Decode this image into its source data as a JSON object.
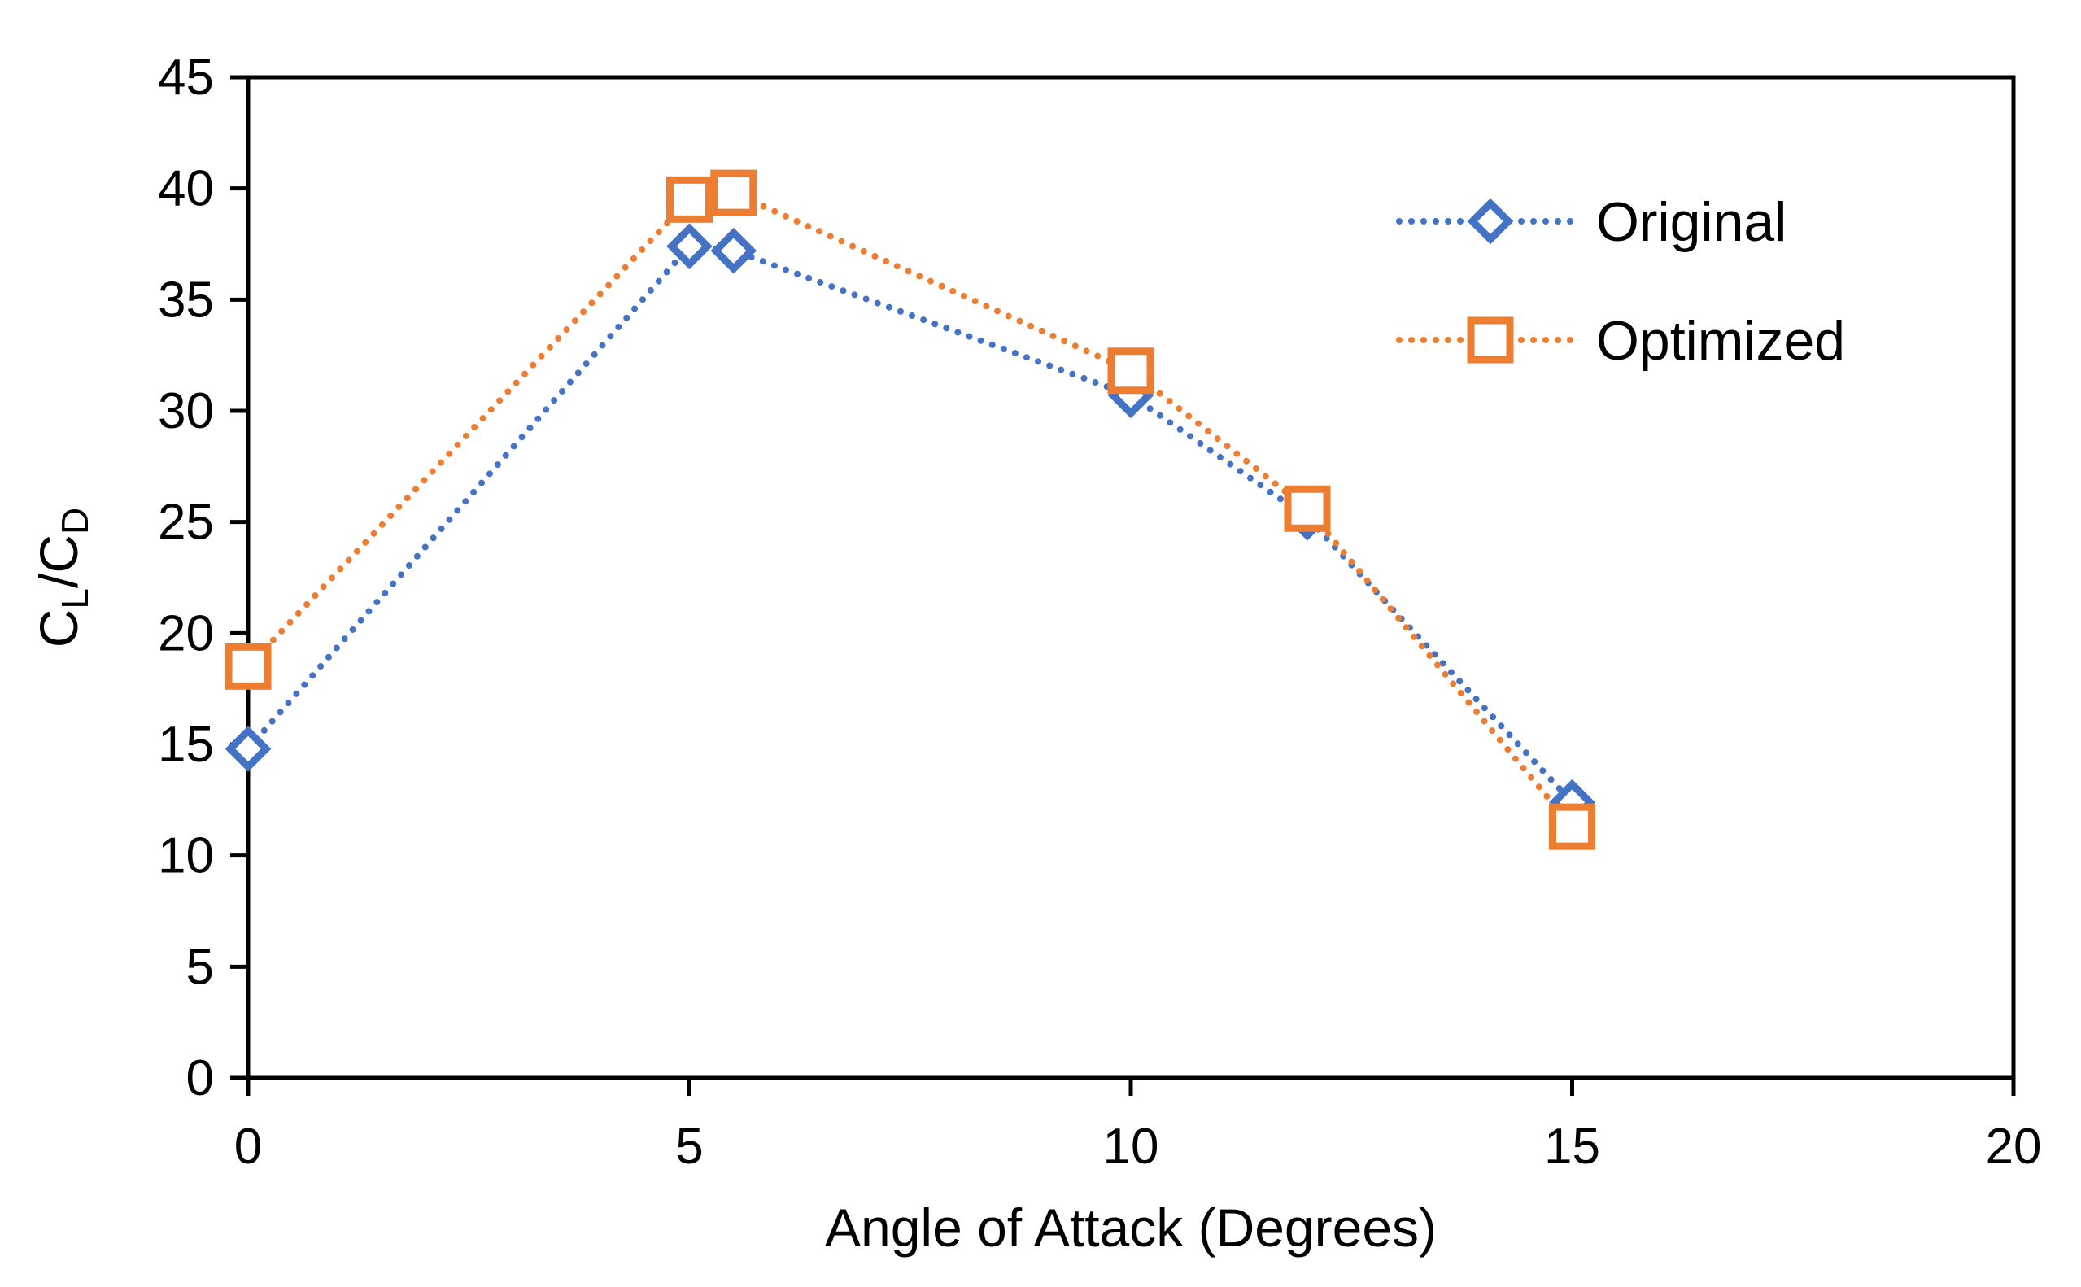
{
  "chart_data": {
    "type": "line",
    "title": "",
    "xlabel": "Angle of Attack (Degrees)",
    "ylabel": {
      "main_1": "C",
      "sub_1": "L",
      "main_2": "/C",
      "sub_2": "D"
    },
    "xlim": [
      0,
      20
    ],
    "ylim": [
      0,
      45
    ],
    "xticks": [
      0,
      5,
      10,
      15,
      20
    ],
    "yticks": [
      0,
      5,
      10,
      15,
      20,
      25,
      30,
      35,
      40,
      45
    ],
    "grid": false,
    "legend_position": "top-right",
    "series": [
      {
        "name": "Original",
        "marker": "diamond",
        "line_style": "dotted",
        "color": "#4472C4",
        "x": [
          0,
          5,
          5.5,
          10,
          12,
          15
        ],
        "y": [
          14.8,
          37.4,
          37.2,
          30.7,
          25.2,
          12.4
        ]
      },
      {
        "name": "Optimized",
        "marker": "square",
        "line_style": "dotted",
        "color": "#ED7D31",
        "x": [
          0,
          5,
          5.5,
          10,
          12,
          15
        ],
        "y": [
          18.5,
          39.5,
          39.8,
          31.8,
          25.6,
          11.3
        ]
      }
    ]
  }
}
